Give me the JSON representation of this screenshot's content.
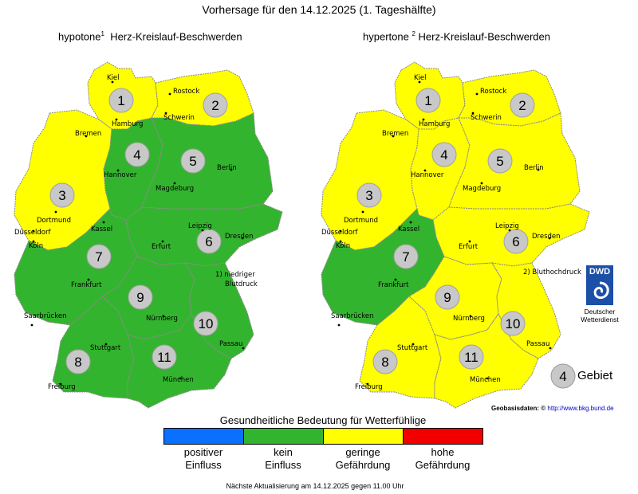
{
  "title": "Vorhersage für den 14.12.2025 (1. Tageshälfte)",
  "maps": [
    {
      "title_prefix": "hypotone",
      "sup": "1",
      "title_suffix": "Herz-Kreislauf-Beschwerden",
      "regions": [
        {
          "id": 1,
          "level": "geringe Gefährdung"
        },
        {
          "id": 2,
          "level": "geringe Gefährdung"
        },
        {
          "id": 3,
          "level": "geringe Gefährdung"
        },
        {
          "id": 4,
          "level": "kein Einfluss"
        },
        {
          "id": 5,
          "level": "kein Einfluss"
        },
        {
          "id": 6,
          "level": "kein Einfluss"
        },
        {
          "id": 7,
          "level": "kein Einfluss"
        },
        {
          "id": 8,
          "level": "kein Einfluss"
        },
        {
          "id": 9,
          "level": "kein Einfluss"
        },
        {
          "id": 10,
          "level": "kein Einfluss"
        },
        {
          "id": 11,
          "level": "kein Einfluss"
        }
      ],
      "note_lines": [
        "1) niedriger",
        "Blutdruck"
      ]
    },
    {
      "title_prefix": "hypertone",
      "sup": "2",
      "title_suffix": "Herz-Kreislauf-Beschwerden",
      "regions": [
        {
          "id": 1,
          "level": "geringe Gefährdung"
        },
        {
          "id": 2,
          "level": "geringe Gefährdung"
        },
        {
          "id": 3,
          "level": "geringe Gefährdung"
        },
        {
          "id": 4,
          "level": "geringe Gefährdung"
        },
        {
          "id": 5,
          "level": "geringe Gefährdung"
        },
        {
          "id": 6,
          "level": "geringe Gefährdung"
        },
        {
          "id": 7,
          "level": "kein Einfluss"
        },
        {
          "id": 8,
          "level": "geringe Gefährdung"
        },
        {
          "id": 9,
          "level": "geringe Gefährdung"
        },
        {
          "id": 10,
          "level": "geringe Gefährdung"
        },
        {
          "id": 11,
          "level": "geringe Gefährdung"
        }
      ],
      "note_lines": [
        "2) Bluthochdruck"
      ]
    }
  ],
  "cities": [
    "Kiel",
    "Rostock",
    "Hamburg",
    "Schwerin",
    "Bremen",
    "Hannover",
    "Berlin",
    "Magdeburg",
    "Dortmund",
    "Düsseldorf",
    "Köln",
    "Kassel",
    "Leipzig",
    "Dresden",
    "Erfurt",
    "Frankfurt",
    "Saarbrücken",
    "Nürnberg",
    "Passau",
    "Stuttgart",
    "Freiburg",
    "München"
  ],
  "legend": {
    "title": "Gesundheitliche Bedeutung für Wetterfühlige",
    "items": [
      {
        "line1": "positiver",
        "line2": "Einfluss",
        "color": "#0a70ff"
      },
      {
        "line1": "kein",
        "line2": "Einfluss",
        "color": "#33b42e"
      },
      {
        "line1": "geringe",
        "line2": "Gefährdung",
        "color": "#ffff00"
      },
      {
        "line1": "hohe",
        "line2": "Gefährdung",
        "color": "#f20000"
      }
    ]
  },
  "colors": {
    "kein Einfluss": "#33b42e",
    "geringe Gefährdung": "#ffff00",
    "positiver Einfluss": "#0a70ff",
    "hohe Gefährdung": "#f20000"
  },
  "dwd": {
    "logo": "DWD",
    "line1": "Deutscher",
    "line2": "Wetterdienst"
  },
  "gebiet": {
    "number": "4",
    "label": "Gebiet"
  },
  "geo": {
    "label": "Geobasisdaten:",
    "symbol": "©",
    "link": "http://www.bkg.bund.de"
  },
  "footer": "Nächste Aktualisierung am 14.12.2025 gegen 11.00 Uhr"
}
